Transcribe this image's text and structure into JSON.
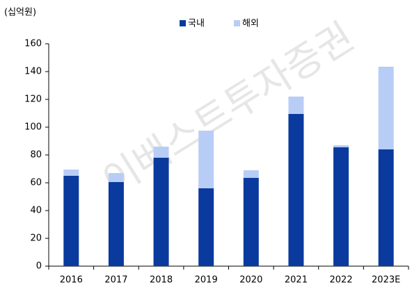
{
  "chart_data": {
    "type": "stacked_bar",
    "unit_label": "(십억원)",
    "watermark": "이베스트투자증권",
    "categories": [
      "2016",
      "2017",
      "2018",
      "2019",
      "2020",
      "2021",
      "2022",
      "2023E"
    ],
    "series": [
      {
        "name": "국내",
        "color": "#0a3a9e",
        "values": [
          65,
          60.5,
          78,
          56,
          63.5,
          109.5,
          85.5,
          84
        ]
      },
      {
        "name": "해외",
        "color": "#b8cdf5",
        "values": [
          4.5,
          6.5,
          8,
          41.5,
          5.5,
          12.5,
          1.5,
          59.5
        ]
      }
    ],
    "ylim": [
      0,
      160
    ],
    "yticks": [
      0,
      20,
      40,
      60,
      80,
      100,
      120,
      140,
      160
    ]
  }
}
